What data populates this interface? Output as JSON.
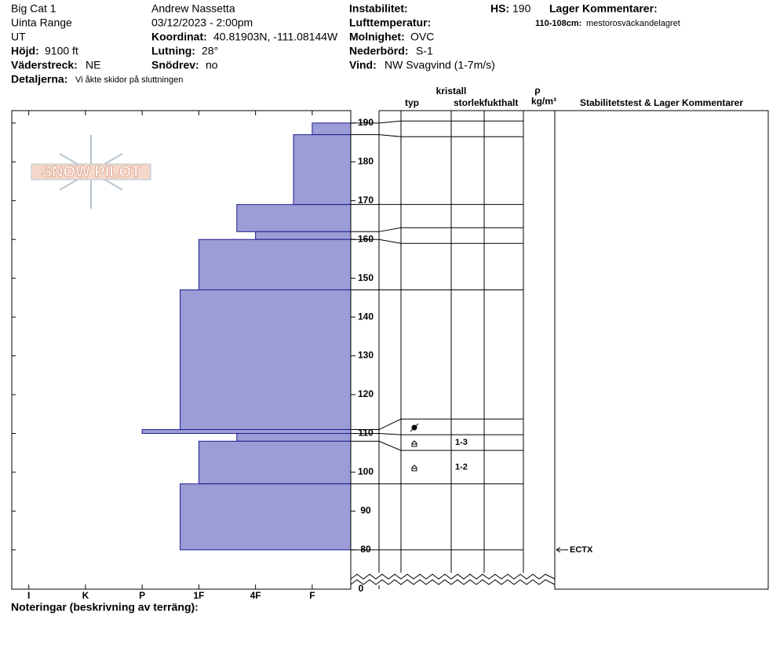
{
  "header": {
    "site": "Big Cat 1",
    "range": "Uinta Range",
    "state": "UT",
    "elevation": {
      "label": "Höjd:",
      "value": "9100 ft"
    },
    "aspect": {
      "label": "Väderstreck:",
      "value": "NE"
    },
    "details": {
      "label": "Detaljerna:",
      "value": "Vi åkte skidor på sluttningen"
    },
    "observer": "Andrew Nassetta",
    "datetime": "03/12/2023 - 2:00pm",
    "coordinates": {
      "label": "Koordinat:",
      "value": "40.81903N, -111.08144W"
    },
    "slope": {
      "label": "Lutning:",
      "value": "28°"
    },
    "wind_loading": {
      "label": "Snödrev:",
      "value": "no"
    },
    "instability": {
      "label": "Instabilitet:"
    },
    "air_temp": {
      "label": "Lufttemperatur:"
    },
    "sky": {
      "label": "Molnighet:",
      "value": "OVC"
    },
    "precip": {
      "label": "Nederbörd:",
      "value": "S-1"
    },
    "wind": {
      "label": "Vind:",
      "value": "NW Svagvind (1-7m/s)"
    },
    "hs": {
      "label": "HS:",
      "value": "190"
    },
    "layer_comments": {
      "label": "Lager Kommentarer:"
    },
    "layer_note": {
      "label": "110-108cm:",
      "value": "mestorosväckandelagret"
    }
  },
  "logo": "SNOW PILOT",
  "columns": {
    "crystal": "kristall",
    "type": "typ",
    "size": "storlek",
    "moisture": "fukthalt",
    "rho": "ρ",
    "density_unit": "kg/m³",
    "stability": "Stabilitetstest & Lager Kommentarer"
  },
  "notes_label": "Noteringar (beskrivning av terräng):",
  "chart_data": {
    "type": "snow-profile",
    "ylim": [
      73.5,
      193.2
    ],
    "yticks": [
      80,
      90,
      100,
      110,
      120,
      130,
      140,
      150,
      160,
      170,
      180,
      190
    ],
    "axis_origin": 0,
    "xlim": [
      6.3,
      0.32
    ],
    "xticks": [
      {
        "value": 6,
        "label": "I"
      },
      {
        "value": 5,
        "label": "K"
      },
      {
        "value": 4,
        "label": "P"
      },
      {
        "value": 3,
        "label": "1F"
      },
      {
        "value": 2,
        "label": "4F"
      },
      {
        "value": 1,
        "label": "F"
      }
    ],
    "color": "#9c9cd6",
    "edge": "#1c1c90",
    "layers": [
      {
        "top": 190,
        "bottom": 187,
        "hardness": 1
      },
      {
        "top": 187,
        "bottom": 169,
        "hardness": 1.33
      },
      {
        "top": 169,
        "bottom": 162,
        "hardness": 2.33
      },
      {
        "top": 162,
        "bottom": 160,
        "hardness": 2
      },
      {
        "top": 160,
        "bottom": 147,
        "hardness": 3
      },
      {
        "top": 147,
        "bottom": 111,
        "hardness": 3.33
      },
      {
        "top": 111,
        "bottom": 110,
        "hardness": 4
      },
      {
        "top": 110,
        "bottom": 108,
        "hardness": 2.33,
        "size": "1-3"
      },
      {
        "top": 108,
        "bottom": 97,
        "hardness": 3,
        "size": "1-2"
      },
      {
        "top": 97,
        "bottom": 80,
        "hardness": 3.33
      }
    ],
    "tests": [
      {
        "height": 80,
        "label": "ECTX"
      }
    ]
  }
}
